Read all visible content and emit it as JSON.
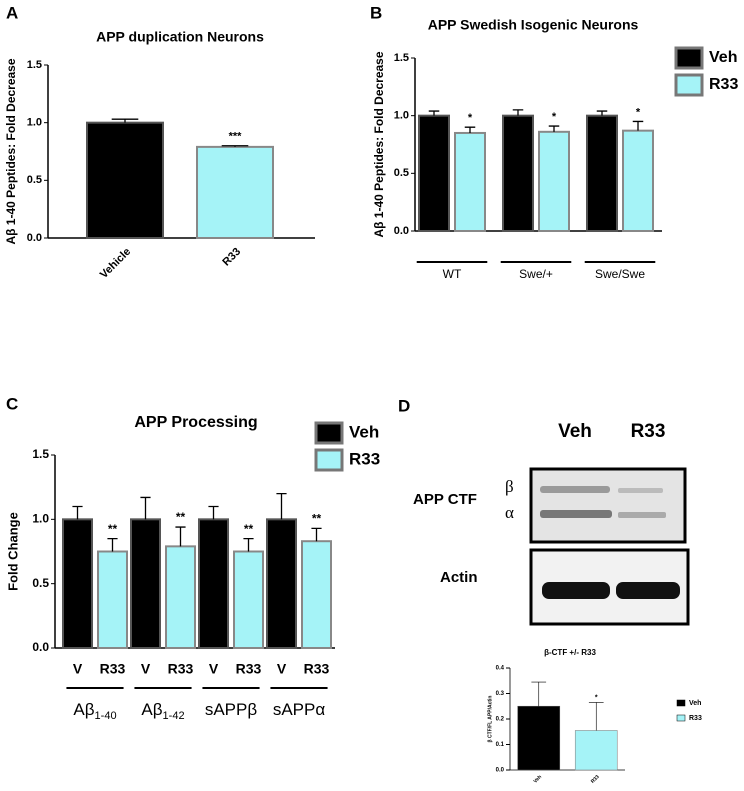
{
  "panel_labels": [
    "A",
    "B",
    "C",
    "D"
  ],
  "chart_data": [
    {
      "type": "bar",
      "title": "APP duplication Neurons",
      "ylabel": "Aβ 1-40 Peptides: Fold Decrease",
      "categories": [
        "Vehicle",
        "R33"
      ],
      "values": [
        1.0,
        0.79
      ],
      "errors": [
        0.03,
        0.01
      ],
      "colors": [
        "#000000",
        "#a5f3f7"
      ],
      "significance": [
        null,
        "***"
      ],
      "ylim": [
        0,
        1.5
      ],
      "yticks": [
        {
          "value": 0,
          "label": "0.0"
        },
        0.5,
        {
          "value": 1,
          "label": "1.0"
        },
        1.5
      ]
    },
    {
      "type": "bar",
      "title": "APP Swedish Isogenic Neurons",
      "ylabel": "Aβ 1-40 Peptides: Fold Decrease",
      "groups": [
        "WT",
        "Swe/+",
        "Swe/Swe"
      ],
      "series": [
        {
          "name": "Veh",
          "color": "#000000",
          "values": [
            1.0,
            1.0,
            1.0
          ],
          "errors": [
            0.04,
            0.05,
            0.04
          ],
          "significance": [
            null,
            null,
            null
          ]
        },
        {
          "name": "R33",
          "color": "#a5f3f7",
          "values": [
            0.85,
            0.86,
            0.87
          ],
          "errors": [
            0.05,
            0.05,
            0.08
          ],
          "significance": [
            "*",
            "*",
            "*"
          ]
        }
      ],
      "ylim": [
        0,
        1.5
      ],
      "yticks": [
        {
          "value": 0,
          "label": "0.0"
        },
        0.5,
        {
          "value": 1,
          "label": "1.0"
        },
        1.5
      ],
      "legend": "right"
    },
    {
      "type": "bar",
      "title": "APP Processing",
      "ylabel": "Fold Change",
      "groups": [
        {
          "text": "Aβ",
          "sub": "1-40"
        },
        {
          "text": "Aβ",
          "sub": "1-42"
        },
        {
          "text": "sAPPβ"
        },
        {
          "text": "sAPPα"
        }
      ],
      "series": [
        {
          "name": "Veh",
          "bar_label": "V",
          "color": "#000000",
          "values": [
            1.0,
            1.0,
            1.0,
            1.0
          ],
          "errors": [
            0.1,
            0.17,
            0.1,
            0.2
          ],
          "significance": [
            null,
            null,
            null,
            null
          ]
        },
        {
          "name": "R33",
          "color": "#a5f3f7",
          "values": [
            0.75,
            0.79,
            0.75,
            0.83
          ],
          "errors": [
            0.1,
            0.15,
            0.1,
            0.1
          ],
          "significance": [
            "**",
            "**",
            "**",
            "**"
          ]
        }
      ],
      "ylim": [
        0,
        1.5
      ],
      "yticks": [
        {
          "value": 0,
          "label": "0.0"
        },
        0.5,
        {
          "value": 1,
          "label": "1.0"
        },
        1.5
      ],
      "legend": "upper right"
    },
    {
      "type": "bar",
      "title": "β-CTF +/- R33",
      "ylabel": "β CTF/FL APP/Actin",
      "categories": [
        "Veh",
        "R33"
      ],
      "values": [
        0.25,
        0.155
      ],
      "errors": [
        0.095,
        0.11
      ],
      "colors": [
        "#000000",
        "#a5f3f7"
      ],
      "significance": [
        null,
        "*"
      ],
      "legend_entries": [
        "Veh",
        "R33"
      ],
      "ylim": [
        0,
        0.4
      ],
      "yticks": [
        {
          "value": 0,
          "label": "0.0"
        },
        0.1,
        0.2,
        0.3,
        0.4
      ]
    }
  ],
  "blot": {
    "lanes": [
      "Veh",
      "R33"
    ],
    "band_label": "APP CTF",
    "beta": "β",
    "alpha": "α",
    "loading_label": "Actin"
  }
}
